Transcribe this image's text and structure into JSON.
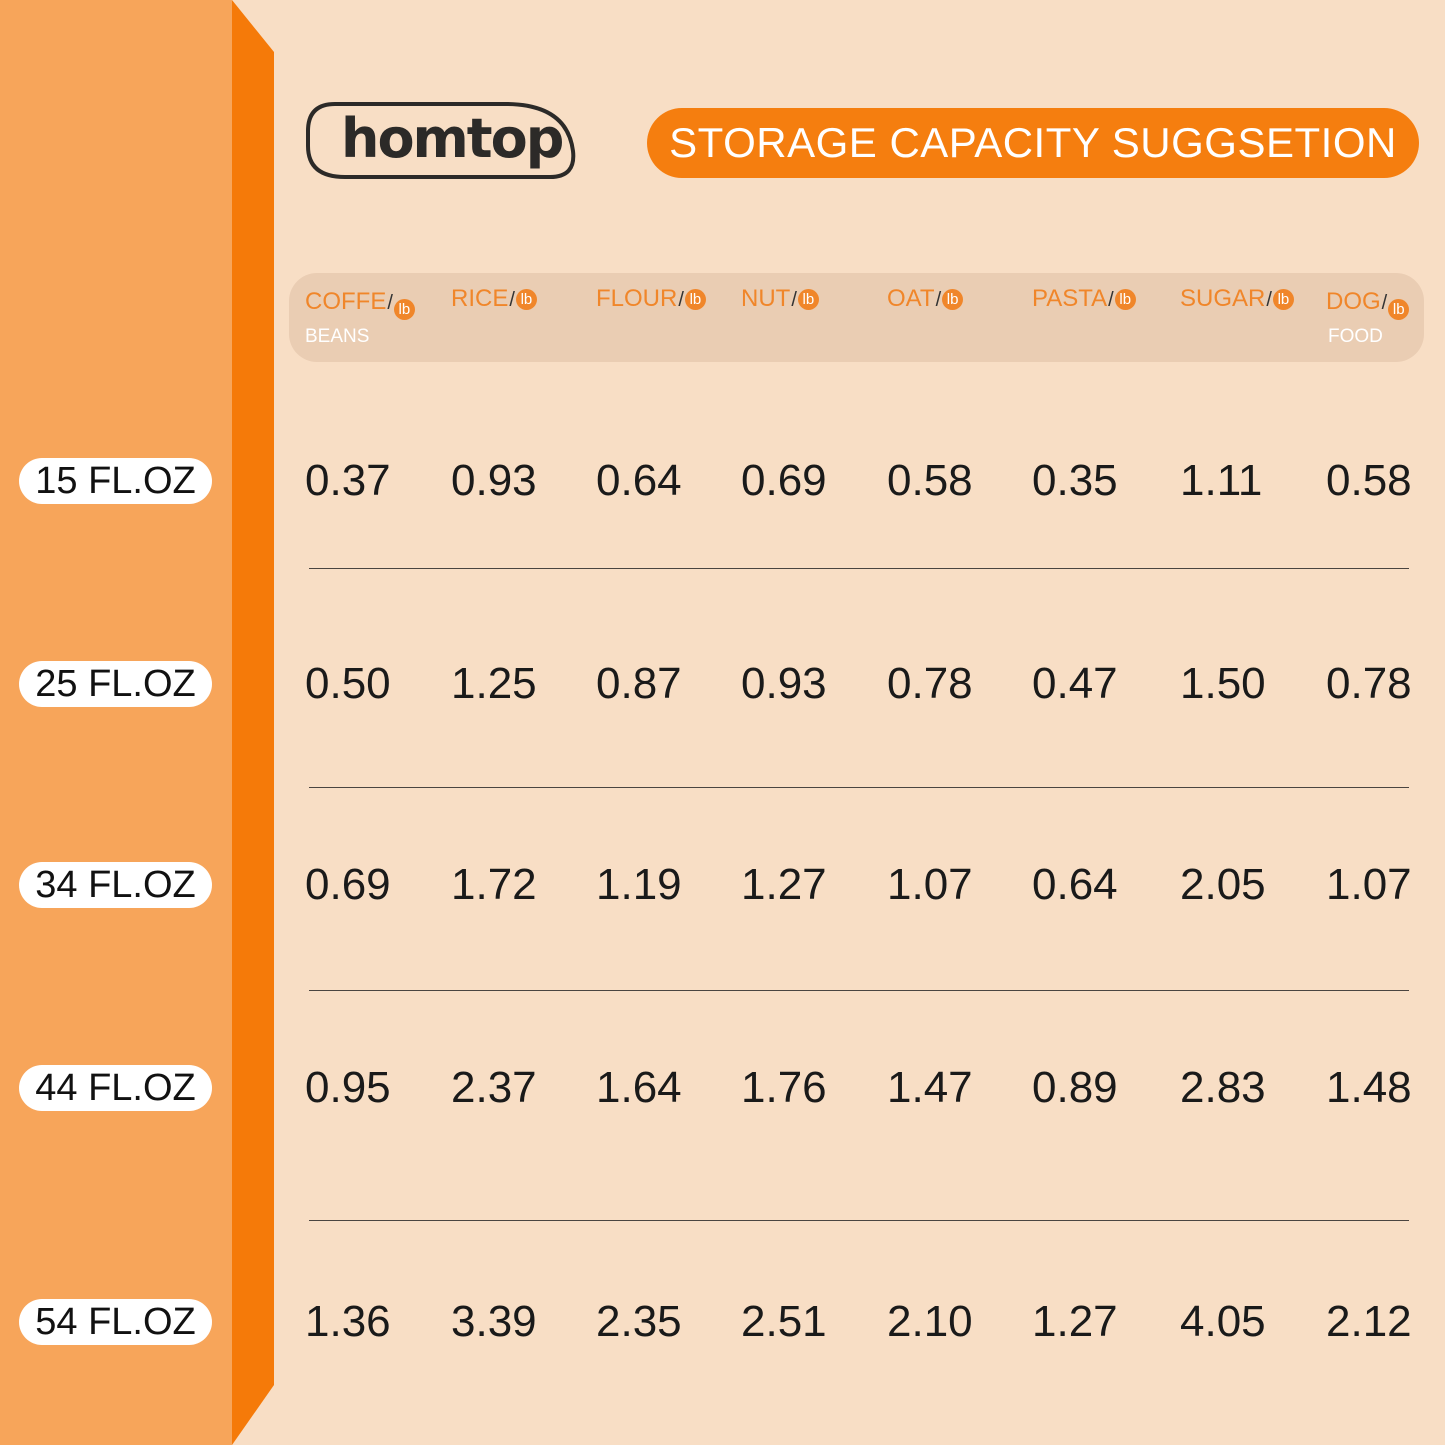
{
  "brand": {
    "logo_text": "homtop"
  },
  "title": "STORAGE CAPACITY SUGGSETION",
  "colors": {
    "accent": "#F57E0F",
    "strip_light": "#F7A55A",
    "strip_dark": "#F57A09",
    "background": "#F8DEC5",
    "header_band": "#EACDB3"
  },
  "unit_badge": "lb",
  "columns": [
    {
      "label": "COFFE",
      "sub": "BEANS"
    },
    {
      "label": "RICE",
      "sub": ""
    },
    {
      "label": "FLOUR",
      "sub": ""
    },
    {
      "label": "NUT",
      "sub": ""
    },
    {
      "label": "OAT",
      "sub": ""
    },
    {
      "label": "PASTA",
      "sub": ""
    },
    {
      "label": "SUGAR",
      "sub": ""
    },
    {
      "label": "DOG",
      "sub": "FOOD"
    }
  ],
  "rows": [
    {
      "size": "15 FL.OZ",
      "values": [
        "0.37",
        "0.93",
        "0.64",
        "0.69",
        "0.58",
        "0.35",
        "1.11",
        "0.58"
      ]
    },
    {
      "size": "25 FL.OZ",
      "values": [
        "0.50",
        "1.25",
        "0.87",
        "0.93",
        "0.78",
        "0.47",
        "1.50",
        "0.78"
      ]
    },
    {
      "size": "34 FL.OZ",
      "values": [
        "0.69",
        "1.72",
        "1.19",
        "1.27",
        "1.07",
        "0.64",
        "2.05",
        "1.07"
      ]
    },
    {
      "size": "44 FL.OZ",
      "values": [
        "0.95",
        "2.37",
        "1.64",
        "1.76",
        "1.47",
        "0.89",
        "2.83",
        "1.48"
      ]
    },
    {
      "size": "54 FL.OZ",
      "values": [
        "1.36",
        "3.39",
        "2.35",
        "2.51",
        "2.10",
        "1.27",
        "4.05",
        "2.12"
      ]
    }
  ]
}
